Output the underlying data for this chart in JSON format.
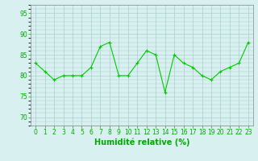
{
  "xlabel": "Humidité relative (%)",
  "ylabel": "",
  "x": [
    0,
    1,
    2,
    3,
    4,
    5,
    6,
    7,
    8,
    9,
    10,
    11,
    12,
    13,
    14,
    15,
    16,
    17,
    18,
    19,
    20,
    21,
    22,
    23
  ],
  "y": [
    83,
    81,
    79,
    80,
    80,
    80,
    82,
    87,
    88,
    80,
    80,
    83,
    86,
    85,
    76,
    85,
    83,
    82,
    80,
    79,
    81,
    82,
    83,
    88
  ],
  "ylim": [
    68,
    97
  ],
  "xlim": [
    -0.5,
    23.5
  ],
  "yticks": [
    70,
    75,
    80,
    85,
    90,
    95
  ],
  "xticks": [
    0,
    1,
    2,
    3,
    4,
    5,
    6,
    7,
    8,
    9,
    10,
    11,
    12,
    13,
    14,
    15,
    16,
    17,
    18,
    19,
    20,
    21,
    22,
    23
  ],
  "line_color": "#00cc00",
  "marker_color": "#00cc00",
  "bg_color": "#d8f0f0",
  "grid_color": "#a8cece",
  "tick_label_color": "#00aa00",
  "axis_label_color": "#00aa00",
  "font_size_ticks": 5.5,
  "font_size_xlabel": 7.0
}
